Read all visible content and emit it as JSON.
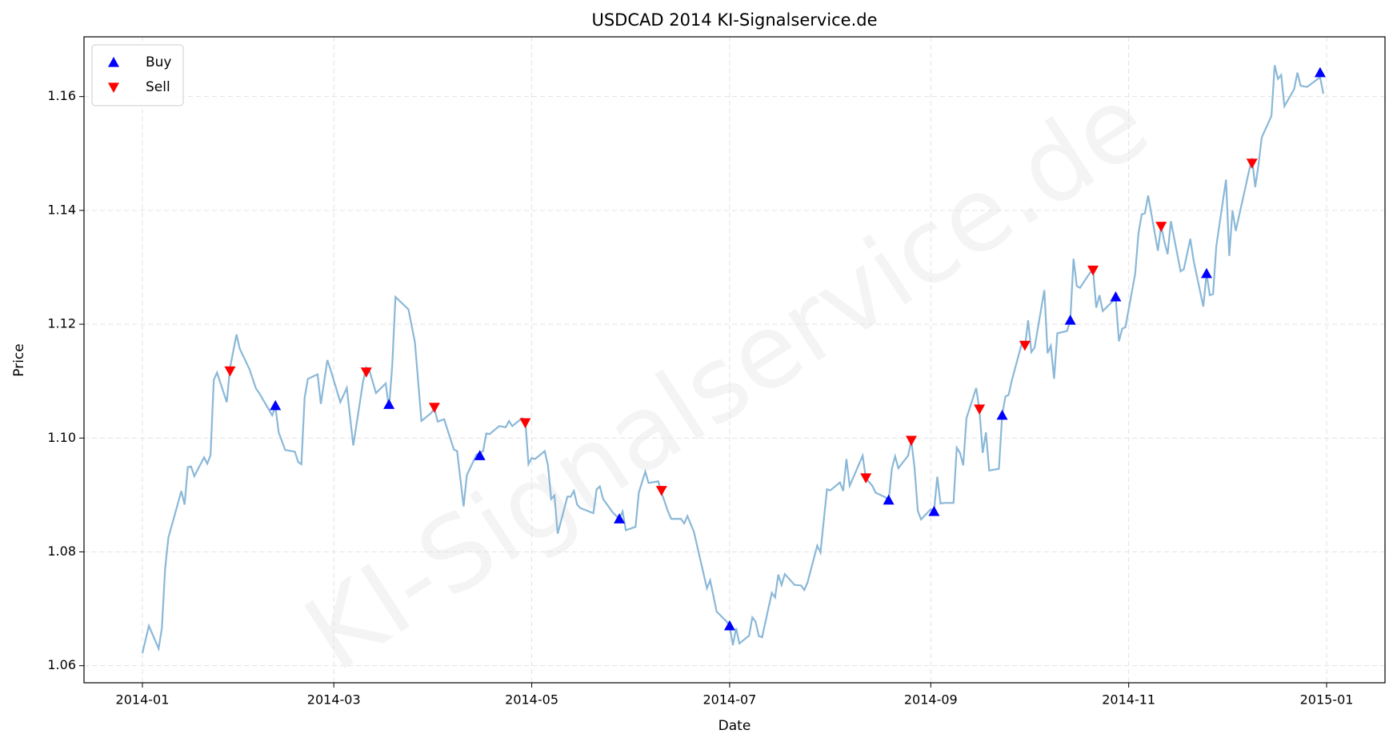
{
  "chart_data": {
    "type": "line",
    "title": "USDCAD 2014 KI-Signalservice.de",
    "xlabel": "Date",
    "ylabel": "Price",
    "watermark": "KI-Signalservice.de",
    "color": "#8ab8d8",
    "grid": true,
    "legend": "upper left",
    "xlim": [
      "2013-12-14",
      "2015-01-19"
    ],
    "ylim": [
      1.057,
      1.1705
    ],
    "xticks": [
      "2014-01",
      "2014-03",
      "2014-05",
      "2014-07",
      "2014-09",
      "2014-11",
      "2015-01"
    ],
    "yticks": [
      1.06,
      1.08,
      {
        "value": 1.1,
        "label": "1.10"
      },
      1.12,
      1.14,
      1.16
    ],
    "x": [
      "2014-01-01",
      "2014-01-03",
      "2014-01-06",
      "2014-01-07",
      "2014-01-08",
      "2014-01-09",
      "2014-01-13",
      "2014-01-14",
      "2014-01-15",
      "2014-01-16",
      "2014-01-17",
      "2014-01-20",
      "2014-01-21",
      "2014-01-22",
      "2014-01-23",
      "2014-01-24",
      "2014-01-27",
      "2014-01-28",
      "2014-01-30",
      "2014-01-31",
      "2014-02-03",
      "2014-02-05",
      "2014-02-06",
      "2014-02-10",
      "2014-02-11",
      "2014-02-12",
      "2014-02-14",
      "2014-02-17",
      "2014-02-18",
      "2014-02-19",
      "2014-02-20",
      "2014-02-21",
      "2014-02-24",
      "2014-02-25",
      "2014-02-27",
      "2014-02-28",
      "2014-03-03",
      "2014-03-05",
      "2014-03-07",
      "2014-03-10",
      "2014-03-11",
      "2014-03-12",
      "2014-03-14",
      "2014-03-17",
      "2014-03-18",
      "2014-03-19",
      "2014-03-20",
      "2014-03-24",
      "2014-03-26",
      "2014-03-28",
      "2014-03-31",
      "2014-04-01",
      "2014-04-02",
      "2014-04-04",
      "2014-04-07",
      "2014-04-08",
      "2014-04-10",
      "2014-04-11",
      "2014-04-14",
      "2014-04-16",
      "2014-04-17",
      "2014-04-18",
      "2014-04-21",
      "2014-04-23",
      "2014-04-24",
      "2014-04-25",
      "2014-04-28",
      "2014-04-29",
      "2014-04-30",
      "2014-05-01",
      "2014-05-02",
      "2014-05-05",
      "2014-05-06",
      "2014-05-07",
      "2014-05-08",
      "2014-05-09",
      "2014-05-12",
      "2014-05-13",
      "2014-05-14",
      "2014-05-15",
      "2014-05-16",
      "2014-05-20",
      "2014-05-21",
      "2014-05-22",
      "2014-05-23",
      "2014-05-26",
      "2014-05-28",
      "2014-05-29",
      "2014-05-30",
      "2014-06-02",
      "2014-06-03",
      "2014-06-05",
      "2014-06-06",
      "2014-06-09",
      "2014-06-10",
      "2014-06-12",
      "2014-06-13",
      "2014-06-16",
      "2014-06-17",
      "2014-06-18",
      "2014-06-20",
      "2014-06-24",
      "2014-06-25",
      "2014-06-27",
      "2014-06-30",
      "2014-07-01",
      "2014-07-02",
      "2014-07-03",
      "2014-07-04",
      "2014-07-07",
      "2014-07-08",
      "2014-07-09",
      "2014-07-10",
      "2014-07-11",
      "2014-07-14",
      "2014-07-15",
      "2014-07-16",
      "2014-07-17",
      "2014-07-18",
      "2014-07-21",
      "2014-07-23",
      "2014-07-24",
      "2014-07-25",
      "2014-07-28",
      "2014-07-29",
      "2014-07-31",
      "2014-08-01",
      "2014-08-04",
      "2014-08-05",
      "2014-08-06",
      "2014-08-07",
      "2014-08-11",
      "2014-08-12",
      "2014-08-14",
      "2014-08-15",
      "2014-08-18",
      "2014-08-19",
      "2014-08-20",
      "2014-08-21",
      "2014-08-22",
      "2014-08-25",
      "2014-08-26",
      "2014-08-27",
      "2014-08-28",
      "2014-08-29",
      "2014-09-01",
      "2014-09-02",
      "2014-09-03",
      "2014-09-04",
      "2014-09-05",
      "2014-09-08",
      "2014-09-09",
      "2014-09-10",
      "2014-09-11",
      "2014-09-12",
      "2014-09-15",
      "2014-09-16",
      "2014-09-17",
      "2014-09-18",
      "2014-09-19",
      "2014-09-22",
      "2014-09-23",
      "2014-09-24",
      "2014-09-25",
      "2014-09-26",
      "2014-09-29",
      "2014-09-30",
      "2014-10-01",
      "2014-10-02",
      "2014-10-03",
      "2014-10-06",
      "2014-10-07",
      "2014-10-08",
      "2014-10-09",
      "2014-10-10",
      "2014-10-13",
      "2014-10-14",
      "2014-10-15",
      "2014-10-16",
      "2014-10-17",
      "2014-10-20",
      "2014-10-21",
      "2014-10-22",
      "2014-10-23",
      "2014-10-24",
      "2014-10-27",
      "2014-10-28",
      "2014-10-29",
      "2014-10-30",
      "2014-10-31",
      "2014-11-03",
      "2014-11-04",
      "2014-11-05",
      "2014-11-06",
      "2014-11-07",
      "2014-11-10",
      "2014-11-11",
      "2014-11-12",
      "2014-11-13",
      "2014-11-14",
      "2014-11-17",
      "2014-11-18",
      "2014-11-20",
      "2014-11-21",
      "2014-11-24",
      "2014-11-25",
      "2014-11-26",
      "2014-11-27",
      "2014-11-28",
      "2014-12-01",
      "2014-12-02",
      "2014-12-03",
      "2014-12-04",
      "2014-12-08",
      "2014-12-09",
      "2014-12-10",
      "2014-12-11",
      "2014-12-12",
      "2014-12-15",
      "2014-12-16",
      "2014-12-17",
      "2014-12-18",
      "2014-12-19",
      "2014-12-22",
      "2014-12-23",
      "2014-12-24",
      "2014-12-26",
      "2014-12-30",
      "2014-12-31"
    ],
    "values": [
      1.0622,
      1.067,
      1.063,
      1.0666,
      1.077,
      1.0825,
      1.0907,
      1.0883,
      1.0949,
      1.095,
      1.0933,
      1.0966,
      1.0955,
      1.097,
      1.1102,
      1.1115,
      1.1063,
      1.1123,
      1.1182,
      1.1157,
      1.1121,
      1.1087,
      1.1079,
      1.104,
      1.1055,
      1.101,
      1.0979,
      1.0976,
      1.0958,
      1.0954,
      1.1071,
      1.1104,
      1.1112,
      1.106,
      1.1137,
      1.112,
      1.1063,
      1.1088,
      1.0987,
      1.1099,
      1.1124,
      1.1118,
      1.1079,
      1.1096,
      1.1052,
      1.1127,
      1.1248,
      1.1226,
      1.1168,
      1.103,
      1.1044,
      1.1052,
      1.1029,
      1.1033,
      1.098,
      1.0977,
      1.088,
      1.0935,
      1.0971,
      1.0977,
      1.1008,
      1.1007,
      1.1021,
      1.1019,
      1.103,
      1.1021,
      1.1035,
      1.1032,
      1.0954,
      1.0965,
      1.0963,
      1.0977,
      1.0952,
      1.0893,
      1.0899,
      1.0832,
      1.0897,
      1.0897,
      1.0907,
      1.0883,
      1.0877,
      1.0868,
      1.091,
      1.0915,
      1.0893,
      1.0869,
      1.0858,
      1.0871,
      1.0838,
      1.0844,
      1.0904,
      1.0941,
      1.0921,
      1.0924,
      1.0904,
      1.0871,
      1.0858,
      1.0858,
      1.085,
      1.0863,
      1.0835,
      1.0736,
      1.075,
      1.0695,
      1.0678,
      1.067,
      1.0636,
      1.0666,
      1.0639,
      1.0653,
      1.0685,
      1.0677,
      1.0652,
      1.065,
      1.0728,
      1.072,
      1.076,
      1.0742,
      1.0761,
      1.0742,
      1.0741,
      1.0733,
      1.0746,
      1.0811,
      1.0799,
      1.091,
      1.0908,
      1.0922,
      1.0907,
      1.0963,
      1.0916,
      1.0969,
      1.0929,
      1.0916,
      1.0904,
      1.0896,
      1.0889,
      1.0946,
      1.0968,
      1.0947,
      1.0969,
      1.0996,
      1.0947,
      1.0872,
      1.0857,
      1.0875,
      1.0872,
      1.0932,
      1.0885,
      1.0886,
      1.0886,
      1.0983,
      1.0974,
      1.0952,
      1.1035,
      1.1088,
      1.1049,
      1.0974,
      1.101,
      1.0943,
      1.0946,
      1.104,
      1.1073,
      1.1076,
      1.1102,
      1.1165,
      1.1159,
      1.1207,
      1.1151,
      1.1159,
      1.126,
      1.1149,
      1.1162,
      1.1104,
      1.1184,
      1.1188,
      1.1207,
      1.1315,
      1.1267,
      1.1264,
      1.129,
      1.1295,
      1.1229,
      1.1251,
      1.1223,
      1.124,
      1.1245,
      1.117,
      1.1192,
      1.1195,
      1.1289,
      1.1359,
      1.1393,
      1.1395,
      1.1426,
      1.1329,
      1.1373,
      1.1345,
      1.1323,
      1.1381,
      1.1293,
      1.1297,
      1.135,
      1.1312,
      1.1231,
      1.1289,
      1.1251,
      1.1253,
      1.1337,
      1.1454,
      1.132,
      1.14,
      1.1364,
      1.1467,
      1.1492,
      1.1441,
      1.148,
      1.1528,
      1.1566,
      1.1655,
      1.1631,
      1.1638,
      1.1583,
      1.1613,
      1.1642,
      1.1619,
      1.1617,
      1.1634,
      1.1605
    ],
    "markers": [
      {
        "name": "Buy",
        "color": "#0000ff",
        "marker": "up",
        "x": [
          "2014-02-11",
          "2014-03-18",
          "2014-04-15",
          "2014-05-28",
          "2014-07-01",
          "2014-08-19",
          "2014-09-02",
          "2014-09-23",
          "2014-10-14",
          "2014-10-28",
          "2014-11-25",
          "2014-12-30"
        ],
        "values": [
          1.1057,
          1.1059,
          1.0969,
          1.0858,
          1.067,
          1.0891,
          1.0871,
          1.104,
          1.1207,
          1.1248,
          1.1289,
          1.1642
        ]
      },
      {
        "name": "Sell",
        "color": "#ff0000",
        "marker": "down",
        "x": [
          "2014-01-28",
          "2014-03-11",
          "2014-04-01",
          "2014-04-29",
          "2014-06-10",
          "2014-08-12",
          "2014-08-26",
          "2014-09-16",
          "2014-09-30",
          "2014-10-21",
          "2014-11-11",
          "2014-12-09"
        ],
        "values": [
          1.1118,
          1.1116,
          1.1054,
          1.1027,
          1.0908,
          1.093,
          1.0996,
          1.1051,
          1.1163,
          1.1295,
          1.1372,
          1.1483
        ]
      }
    ]
  }
}
